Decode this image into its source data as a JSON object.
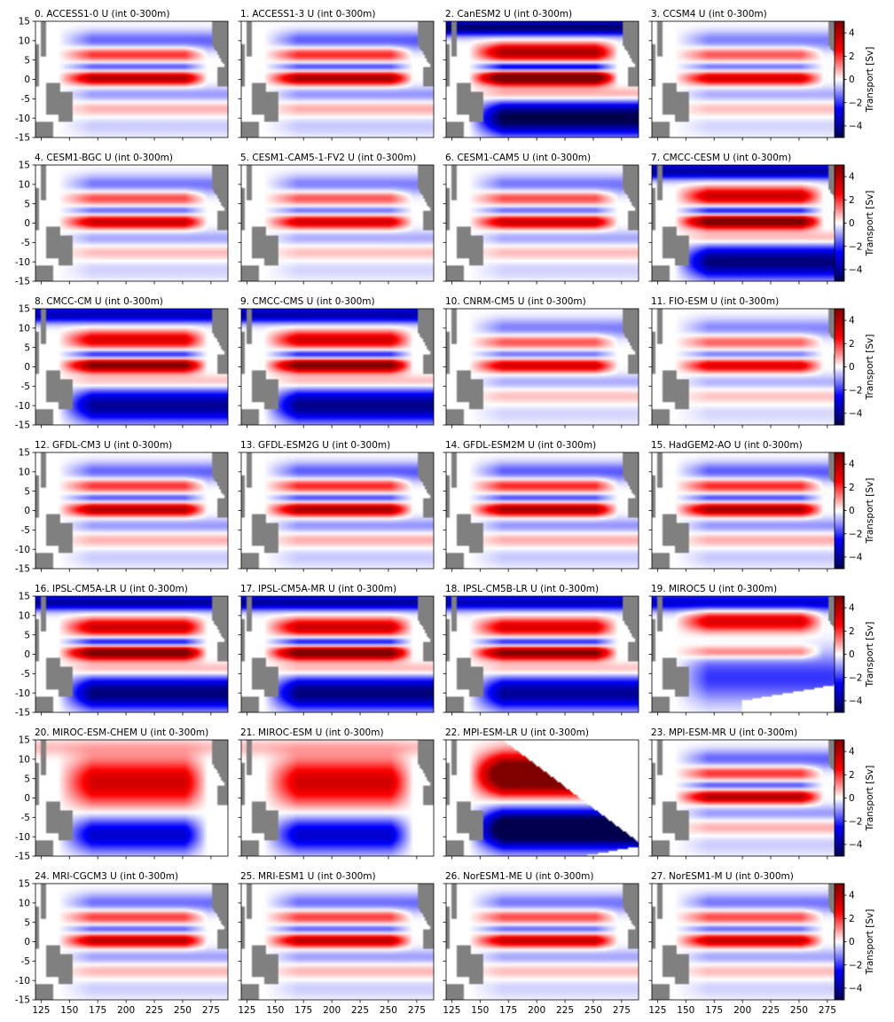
{
  "chart_data": {
    "type": "heatmap",
    "xlim": [
      120,
      290
    ],
    "ylim": [
      -15,
      15
    ],
    "xticks": [
      "125",
      "150",
      "175",
      "200",
      "225",
      "250",
      "275"
    ],
    "yticks": [
      "-15",
      "-10",
      "-5",
      "0",
      "5",
      "10",
      "15"
    ],
    "colorbar": {
      "label": "Transport [Sv]",
      "range": [
        -5,
        5
      ],
      "ticks": [
        "−4",
        "−2",
        "0",
        "2",
        "4"
      ],
      "colors": [
        "#00004d",
        "#0000ff",
        "#ffffff",
        "#ff0000",
        "#800000"
      ]
    },
    "land_color": "#808080",
    "panels": [
      {
        "title": "0. ACCESS1-0 U (int 0-300m)",
        "style": "standard",
        "strength": 0.85
      },
      {
        "title": "1. ACCESS1-3 U (int 0-300m)",
        "style": "standard",
        "strength": 0.9
      },
      {
        "title": "2. CanESM2 U (int 0-300m)",
        "style": "coarse",
        "strength": 1.3
      },
      {
        "title": "3. CCSM4 U (int 0-300m)",
        "style": "standard",
        "strength": 0.7
      },
      {
        "title": "4. CESM1-BGC U (int 0-300m)",
        "style": "standard",
        "strength": 0.75
      },
      {
        "title": "5. CESM1-CAM5-1-FV2 U (int 0-300m)",
        "style": "standard",
        "strength": 0.7
      },
      {
        "title": "6. CESM1-CAM5 U (int 0-300m)",
        "style": "standard",
        "strength": 0.75
      },
      {
        "title": "7. CMCC-CESM U (int 0-300m)",
        "style": "coarse",
        "strength": 1.1
      },
      {
        "title": "8. CMCC-CM U (int 0-300m)",
        "style": "broad",
        "strength": 1.0
      },
      {
        "title": "9. CMCC-CMS U (int 0-300m)",
        "style": "broad",
        "strength": 1.05
      },
      {
        "title": "10. CNRM-CM5 U (int 0-300m)",
        "style": "standard",
        "strength": 0.7
      },
      {
        "title": "11. FIO-ESM U (int 0-300m)",
        "style": "standard",
        "strength": 0.65
      },
      {
        "title": "12. GFDL-CM3 U (int 0-300m)",
        "style": "standard",
        "strength": 0.85
      },
      {
        "title": "13. GFDL-ESM2G U (int 0-300m)",
        "style": "standard",
        "strength": 0.9
      },
      {
        "title": "14. GFDL-ESM2M U (int 0-300m)",
        "style": "standard",
        "strength": 0.9
      },
      {
        "title": "15. HadGEM2-AO U (int 0-300m)",
        "style": "standard",
        "strength": 0.9
      },
      {
        "title": "16. IPSL-CM5A-LR U (int 0-300m)",
        "style": "broad",
        "strength": 1.1
      },
      {
        "title": "17. IPSL-CM5A-MR U (int 0-300m)",
        "style": "broad",
        "strength": 1.1
      },
      {
        "title": "18. IPSL-CM5B-LR U (int 0-300m)",
        "style": "broad",
        "strength": 1.0
      },
      {
        "title": "19. MIROC5 U (int 0-300m)",
        "style": "miroc5",
        "strength": 0.9
      },
      {
        "title": "20. MIROC-ESM-CHEM U (int 0-300m)",
        "style": "smooth",
        "strength": 0.8
      },
      {
        "title": "21. MIROC-ESM U (int 0-300m)",
        "style": "smooth",
        "strength": 0.8
      },
      {
        "title": "22. MPI-ESM-LR U (int 0-300m)",
        "style": "mpi",
        "strength": 1.3
      },
      {
        "title": "23. MPI-ESM-MR U (int 0-300m)",
        "style": "standard",
        "strength": 0.85
      },
      {
        "title": "24. MRI-CGCM3 U (int 0-300m)",
        "style": "standard",
        "strength": 0.8
      },
      {
        "title": "25. MRI-ESM1 U (int 0-300m)",
        "style": "standard",
        "strength": 0.8
      },
      {
        "title": "26. NorESM1-ME U (int 0-300m)",
        "style": "standard",
        "strength": 0.75
      },
      {
        "title": "27. NorESM1-M U (int 0-300m)",
        "style": "standard",
        "strength": 0.75
      }
    ]
  }
}
